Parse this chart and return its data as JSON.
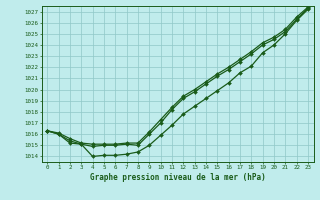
{
  "title": "Graphe pression niveau de la mer (hPa)",
  "bg_color": "#c0ecec",
  "plot_bg_color": "#c0ecec",
  "line_color": "#1a5c1a",
  "grid_color": "#90c8c8",
  "x_ticks": [
    0,
    1,
    2,
    3,
    4,
    5,
    6,
    7,
    8,
    9,
    10,
    11,
    12,
    13,
    14,
    15,
    16,
    17,
    18,
    19,
    20,
    21,
    22,
    23
  ],
  "ylim": [
    1013.5,
    1027.5
  ],
  "yticks": [
    1014,
    1015,
    1016,
    1017,
    1018,
    1019,
    1020,
    1021,
    1022,
    1023,
    1024,
    1025,
    1026,
    1027
  ],
  "series": [
    [
      1016.3,
      1016.0,
      1015.2,
      1015.1,
      1014.0,
      1014.1,
      1014.1,
      1014.2,
      1014.4,
      1015.0,
      1015.9,
      1016.8,
      1017.8,
      1018.5,
      1019.2,
      1019.9,
      1020.6,
      1021.5,
      1022.1,
      1023.3,
      1024.0,
      1025.0,
      1026.2,
      1027.2
    ],
    [
      1016.3,
      1016.0,
      1015.4,
      1015.1,
      1014.9,
      1015.0,
      1015.0,
      1015.1,
      1015.0,
      1016.0,
      1017.0,
      1018.2,
      1019.2,
      1019.8,
      1020.5,
      1021.2,
      1021.8,
      1022.5,
      1023.2,
      1024.0,
      1024.5,
      1025.2,
      1026.3,
      1027.3
    ],
    [
      1016.3,
      1016.1,
      1015.6,
      1015.2,
      1015.1,
      1015.1,
      1015.1,
      1015.2,
      1015.2,
      1016.2,
      1017.3,
      1018.4,
      1019.4,
      1020.0,
      1020.7,
      1021.4,
      1022.0,
      1022.7,
      1023.4,
      1024.2,
      1024.7,
      1025.4,
      1026.5,
      1027.4
    ]
  ]
}
